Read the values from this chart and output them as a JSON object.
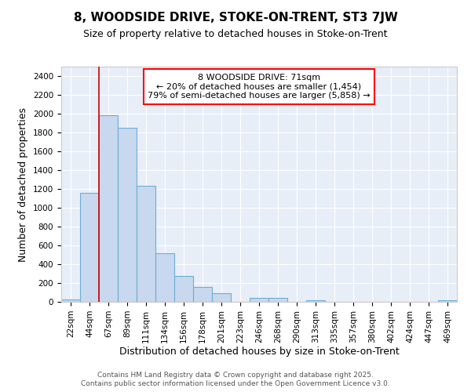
{
  "title": "8, WOODSIDE DRIVE, STOKE-ON-TRENT, ST3 7JW",
  "subtitle": "Size of property relative to detached houses in Stoke-on-Trent",
  "xlabel": "Distribution of detached houses by size in Stoke-on-Trent",
  "ylabel": "Number of detached properties",
  "categories": [
    "22sqm",
    "44sqm",
    "67sqm",
    "89sqm",
    "111sqm",
    "134sqm",
    "156sqm",
    "178sqm",
    "201sqm",
    "223sqm",
    "246sqm",
    "268sqm",
    "290sqm",
    "313sqm",
    "335sqm",
    "357sqm",
    "380sqm",
    "402sqm",
    "424sqm",
    "447sqm",
    "469sqm"
  ],
  "values": [
    25,
    1155,
    1980,
    1850,
    1230,
    520,
    275,
    155,
    95,
    0,
    45,
    45,
    0,
    20,
    0,
    0,
    0,
    0,
    0,
    0,
    20
  ],
  "bar_color": "#c8d8ee",
  "bar_edge_color": "#6baed6",
  "background_color": "#e8eef8",
  "grid_color": "#ffffff",
  "annotation_box_text": "8 WOODSIDE DRIVE: 71sqm\n← 20% of detached houses are smaller (1,454)\n79% of semi-detached houses are larger (5,858) →",
  "vline_color": "#cc0000",
  "vline_index": 2,
  "ylim": [
    0,
    2500
  ],
  "yticks": [
    0,
    200,
    400,
    600,
    800,
    1000,
    1200,
    1400,
    1600,
    1800,
    2000,
    2200,
    2400
  ],
  "footer_text": "Contains HM Land Registry data © Crown copyright and database right 2025.\nContains public sector information licensed under the Open Government Licence v3.0.",
  "title_fontsize": 11,
  "subtitle_fontsize": 9,
  "axis_label_fontsize": 9,
  "tick_fontsize": 7.5,
  "annotation_fontsize": 8,
  "footer_fontsize": 6.5
}
